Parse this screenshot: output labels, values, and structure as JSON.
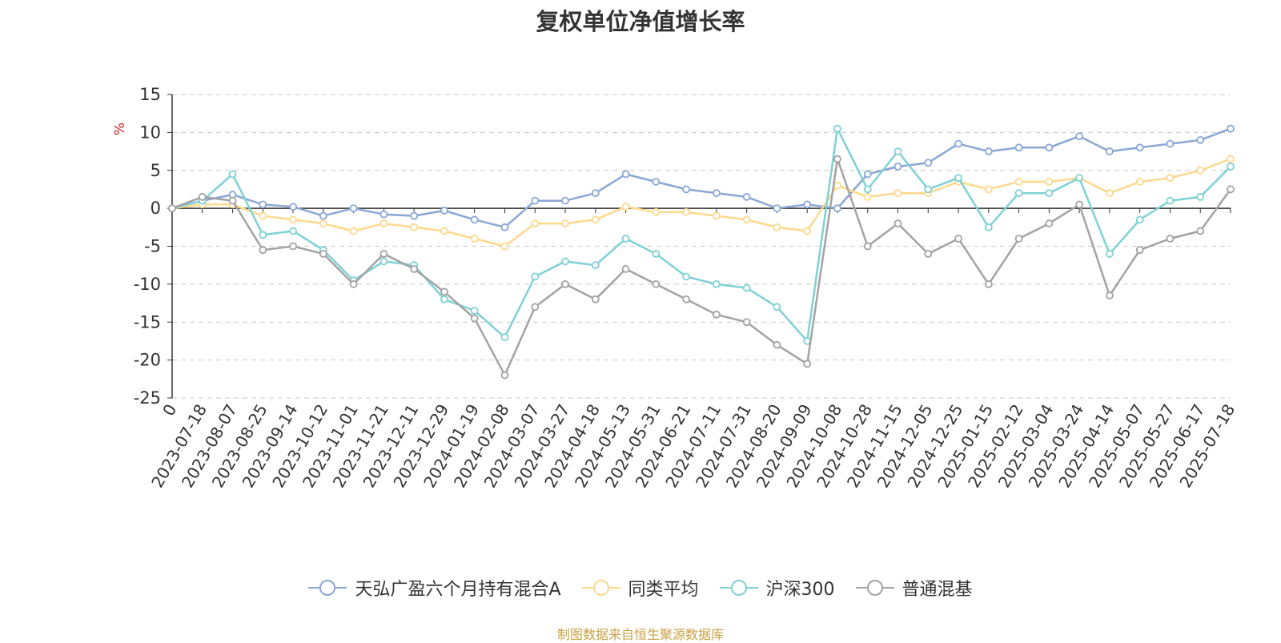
{
  "chart_data": {
    "type": "line",
    "title": "复权单位净值增长率",
    "ylabel": "%",
    "ylim": [
      -25,
      15
    ],
    "yticks": [
      15,
      10,
      5,
      0,
      -5,
      -10,
      -15,
      -20,
      -25
    ],
    "xlabels": [
      "0",
      "2023-07-18",
      "2023-08-07",
      "2023-08-25",
      "2023-09-14",
      "2023-10-12",
      "2023-11-01",
      "2023-11-21",
      "2023-12-11",
      "2023-12-29",
      "2024-01-19",
      "2024-02-08",
      "2024-03-07",
      "2024-03-27",
      "2024-04-18",
      "2024-05-13",
      "2024-05-31",
      "2024-06-21",
      "2024-07-11",
      "2024-07-31",
      "2024-08-20",
      "2024-09-09",
      "2024-10-08",
      "2024-10-28",
      "2024-11-15",
      "2024-12-05",
      "2024-12-25",
      "2025-01-15",
      "2025-02-12",
      "2025-03-04",
      "2025-03-24",
      "2025-04-14",
      "2025-05-07",
      "2025-05-27",
      "2025-06-17",
      "2025-07-18"
    ],
    "grid": true,
    "legend_position": "bottom",
    "series": [
      {
        "name": "天弘广盈六个月持有混合A",
        "color": "#8aa7d6",
        "values": [
          0,
          1,
          1.8,
          0.5,
          0.2,
          -1,
          0,
          -0.8,
          -1,
          -0.3,
          -1.5,
          -2.5,
          1,
          1,
          2,
          4.5,
          3.5,
          2.5,
          2,
          1.5,
          0,
          0.5,
          0,
          4.5,
          5.5,
          6,
          8.5,
          7.5,
          8,
          8,
          9.5,
          7.5,
          8,
          8.5,
          9,
          10.5
        ]
      },
      {
        "name": "同类平均",
        "color": "#fcd98d",
        "values": [
          0,
          0.5,
          0.5,
          -1,
          -1.5,
          -2,
          -3,
          -2,
          -2.5,
          -3,
          -4,
          -5,
          -2,
          -2,
          -1.5,
          0.2,
          -0.5,
          -0.5,
          -1,
          -1.5,
          -2.5,
          -3,
          3,
          1.5,
          2,
          2,
          3.5,
          2.5,
          3.5,
          3.5,
          4,
          2,
          3.5,
          4,
          5,
          6.5
        ]
      },
      {
        "name": "沪深300",
        "color": "#7fd1d5",
        "values": [
          0,
          1,
          4.5,
          -3.5,
          -3,
          -5.5,
          -9.5,
          -7,
          -7.5,
          -12,
          -13.5,
          -17,
          -9,
          -7,
          -7.5,
          -4,
          -6,
          -9,
          -10,
          -10.5,
          -13,
          -17.5,
          10.5,
          2.5,
          7.5,
          2.5,
          4,
          -2.5,
          2,
          2,
          4,
          -6,
          -1.5,
          1,
          1.5,
          5.5
        ]
      },
      {
        "name": "普通混基",
        "color": "#a3a3a3",
        "values": [
          0,
          1.5,
          1,
          -5.5,
          -5,
          -6,
          -10,
          -6,
          -8,
          -11,
          -14.5,
          -22,
          -13,
          -10,
          -12,
          -8,
          -10,
          -12,
          -14,
          -15,
          -18,
          -20.5,
          6.5,
          -5,
          -2,
          -6,
          -4,
          -10,
          -4,
          -2,
          0.5,
          -11.5,
          -5.5,
          -4,
          -3,
          2.5
        ]
      }
    ]
  },
  "source_note": "制图数据来自恒生聚源数据库"
}
